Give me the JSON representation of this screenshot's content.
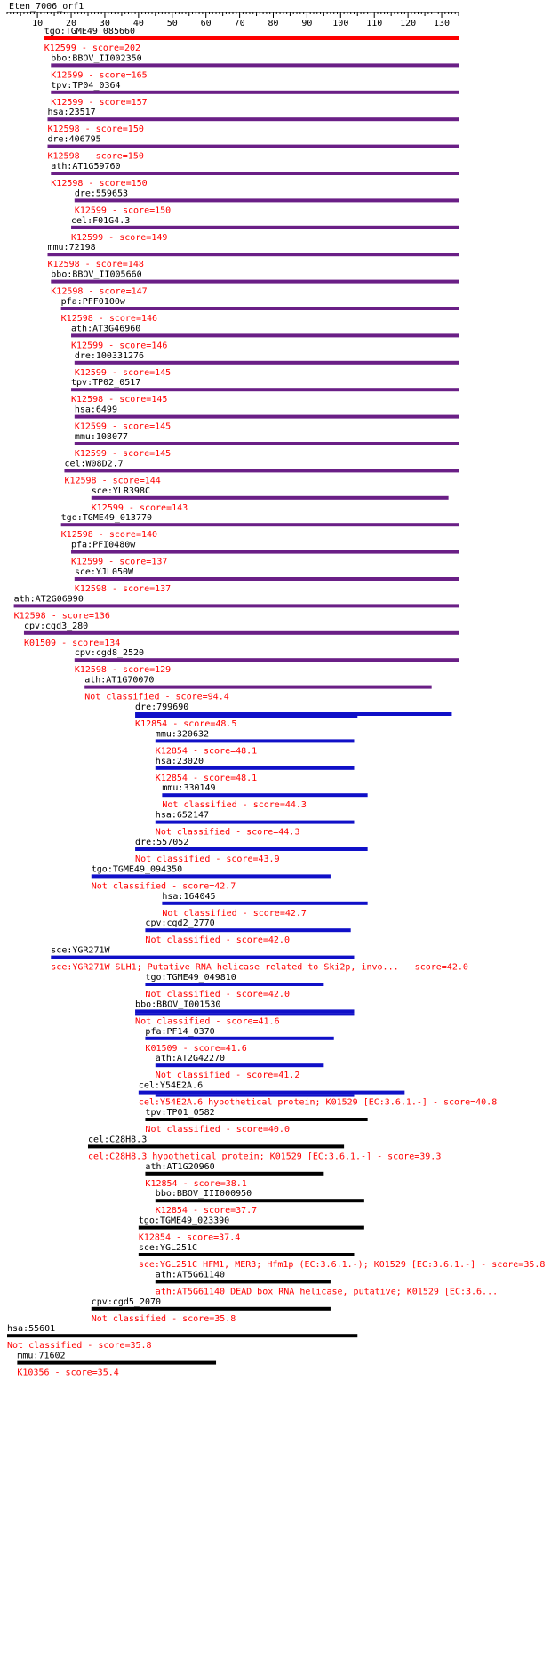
{
  "query": {
    "name": "Eten_7006_orf1",
    "axis_ticks": [
      10,
      20,
      30,
      40,
      50,
      60,
      70,
      80,
      90,
      100,
      110,
      120,
      130
    ]
  },
  "colors": {
    "red": "#ff0000",
    "purple": "#6a1f86",
    "blue": "#1010c8",
    "black": "#000000",
    "label": "#000000",
    "subtitle": "#ff0000"
  },
  "chart_data": {
    "type": "alignment",
    "x_unit": "query residue position",
    "xlim": [
      1,
      135
    ],
    "hits": [
      {
        "label": "tgo:TGME49_085660",
        "subtitle": "K12599 - score=202",
        "start": 12,
        "end": 135,
        "color": "red"
      },
      {
        "label": "bbo:BBOV_II002350",
        "subtitle": "K12599 - score=165",
        "start": 14,
        "end": 135,
        "color": "purple"
      },
      {
        "label": "tpv:TP04_0364",
        "subtitle": "K12599 - score=157",
        "start": 14,
        "end": 135,
        "color": "purple"
      },
      {
        "label": "hsa:23517",
        "subtitle": "K12598 - score=150",
        "start": 13,
        "end": 135,
        "color": "purple"
      },
      {
        "label": "dre:406795",
        "subtitle": "K12598 - score=150",
        "start": 13,
        "end": 135,
        "color": "purple"
      },
      {
        "label": "ath:AT1G59760",
        "subtitle": "K12598 - score=150",
        "start": 14,
        "end": 135,
        "color": "purple"
      },
      {
        "label": "dre:559653",
        "subtitle": "K12599 - score=150",
        "start": 21,
        "end": 135,
        "color": "purple"
      },
      {
        "label": "cel:F01G4.3",
        "subtitle": "K12599 - score=149",
        "start": 20,
        "end": 135,
        "color": "purple"
      },
      {
        "label": "mmu:72198",
        "subtitle": "K12598 - score=148",
        "start": 13,
        "end": 135,
        "color": "purple"
      },
      {
        "label": "bbo:BBOV_II005660",
        "subtitle": "K12598 - score=147",
        "start": 14,
        "end": 135,
        "color": "purple"
      },
      {
        "label": "pfa:PFF0100w",
        "subtitle": "K12598 - score=146",
        "start": 17,
        "end": 135,
        "color": "purple"
      },
      {
        "label": "ath:AT3G46960",
        "subtitle": "K12599 - score=146",
        "start": 20,
        "end": 135,
        "color": "purple"
      },
      {
        "label": "dre:100331276",
        "subtitle": "K12599 - score=145",
        "start": 21,
        "end": 135,
        "color": "purple"
      },
      {
        "label": "tpv:TP02_0517",
        "subtitle": "K12598 - score=145",
        "start": 20,
        "end": 135,
        "color": "purple"
      },
      {
        "label": "hsa:6499",
        "subtitle": "K12599 - score=145",
        "start": 21,
        "end": 135,
        "color": "purple"
      },
      {
        "label": "mmu:108077",
        "subtitle": "K12599 - score=145",
        "start": 21,
        "end": 135,
        "color": "purple"
      },
      {
        "label": "cel:W08D2.7",
        "subtitle": "K12598 - score=144",
        "start": 18,
        "end": 135,
        "color": "purple"
      },
      {
        "label": "sce:YLR398C",
        "subtitle": "K12599 - score=143",
        "start": 26,
        "end": 132,
        "color": "purple"
      },
      {
        "label": "tgo:TGME49_013770",
        "subtitle": "K12598 - score=140",
        "start": 17,
        "end": 135,
        "color": "purple"
      },
      {
        "label": "pfa:PFI0480w",
        "subtitle": "K12599 - score=137",
        "start": 20,
        "end": 135,
        "color": "purple"
      },
      {
        "label": "sce:YJL050W",
        "subtitle": "K12598 - score=137",
        "start": 21,
        "end": 135,
        "color": "purple"
      },
      {
        "label": "ath:AT2G06990",
        "subtitle": "K12598 - score=136",
        "start": 3,
        "end": 135,
        "color": "purple"
      },
      {
        "label": "cpv:cgd3_280",
        "subtitle": "K01509 - score=134",
        "start": 6,
        "end": 135,
        "color": "purple"
      },
      {
        "label": "cpv:cgd8_2520",
        "subtitle": "K12598 - score=129",
        "start": 21,
        "end": 135,
        "color": "purple"
      },
      {
        "label": "ath:AT1G70070",
        "subtitle": "Not classified - score=94.4",
        "start": 24,
        "end": 127,
        "color": "purple"
      },
      {
        "label": "dre:799690",
        "subtitle": "K12854 - score=48.5",
        "start": 39,
        "end": 133,
        "start2": 39,
        "end2": 105,
        "color": "blue"
      },
      {
        "label": "mmu:320632",
        "subtitle": "K12854 - score=48.1",
        "start": 45,
        "end": 104,
        "color": "blue"
      },
      {
        "label": "hsa:23020",
        "subtitle": "K12854 - score=48.1",
        "start": 45,
        "end": 104,
        "color": "blue"
      },
      {
        "label": "mmu:330149",
        "subtitle": "Not classified - score=44.3",
        "start": 47,
        "end": 108,
        "color": "blue"
      },
      {
        "label": "hsa:652147",
        "subtitle": "Not classified - score=44.3",
        "start": 45,
        "end": 104,
        "color": "blue"
      },
      {
        "label": "dre:557052",
        "subtitle": "Not classified - score=43.9",
        "start": 39,
        "end": 108,
        "color": "blue"
      },
      {
        "label": "tgo:TGME49_094350",
        "subtitle": "Not classified - score=42.7",
        "start": 26,
        "end": 97,
        "color": "blue"
      },
      {
        "label": "hsa:164045",
        "subtitle": "Not classified - score=42.7",
        "start": 47,
        "end": 108,
        "color": "blue"
      },
      {
        "label": "cpv:cgd2_2770",
        "subtitle": "Not classified - score=42.0",
        "start": 42,
        "end": 103,
        "color": "blue"
      },
      {
        "label": "sce:YGR271W",
        "subtitle": "sce:YGR271W  SLH1; Putative RNA helicase related to Ski2p, invo... - score=42.0",
        "start": 14,
        "end": 104,
        "color": "blue"
      },
      {
        "label": "tgo:TGME49_049810",
        "subtitle": "Not classified - score=42.0",
        "start": 42,
        "end": 95,
        "color": "blue"
      },
      {
        "label": "bbo:BBOV_I001530",
        "subtitle": "Not classified - score=41.6",
        "start": 39,
        "end": 104,
        "start2": 39,
        "end2": 104,
        "color": "blue"
      },
      {
        "label": "pfa:PF14_0370",
        "subtitle": "K01509 - score=41.6",
        "start": 42,
        "end": 98,
        "color": "blue"
      },
      {
        "label": "ath:AT2G42270",
        "subtitle": "Not classified - score=41.2",
        "start": 45,
        "end": 95,
        "color": "blue"
      },
      {
        "label": "cel:Y54E2A.6",
        "subtitle": "cel:Y54E2A.6  hypothetical protein; K01529  [EC:3.6.1.-] - score=40.8",
        "start": 40,
        "end": 119,
        "start2": 45,
        "end2": 104,
        "color": "blue"
      },
      {
        "label": "tpv:TP01_0582",
        "subtitle": "Not classified - score=40.0",
        "start": 42,
        "end": 108,
        "color": "black"
      },
      {
        "label": "cel:C28H8.3",
        "subtitle": "cel:C28H8.3  hypothetical protein; K01529  [EC:3.6.1.-] - score=39.3",
        "start": 25,
        "end": 101,
        "color": "black"
      },
      {
        "label": "ath:AT1G20960",
        "subtitle": "K12854 - score=38.1",
        "start": 42,
        "end": 95,
        "color": "black"
      },
      {
        "label": "bbo:BBOV_III000950",
        "subtitle": "K12854 - score=37.7",
        "start": 45,
        "end": 107,
        "color": "black"
      },
      {
        "label": "tgo:TGME49_023390",
        "subtitle": "K12854 - score=37.4",
        "start": 40,
        "end": 107,
        "color": "black"
      },
      {
        "label": "sce:YGL251C",
        "subtitle": "sce:YGL251C  HFM1, MER3; Hfm1p (EC:3.6.1.-); K01529  [EC:3.6.1.-] - score=35.8",
        "start": 40,
        "end": 104,
        "color": "black"
      },
      {
        "label": "ath:AT5G61140",
        "subtitle": "ath:AT5G61140  DEAD box RNA helicase, putative; K01529  [EC:3.6...",
        "start": 45,
        "end": 97,
        "color": "black"
      },
      {
        "label": "cpv:cgd5_2070",
        "subtitle": "Not classified - score=35.8",
        "start": 26,
        "end": 97,
        "color": "black"
      },
      {
        "label": "hsa:55601",
        "subtitle": "Not classified - score=35.8",
        "start": 1,
        "end": 105,
        "color": "black"
      },
      {
        "label": "mmu:71602",
        "subtitle": "K10356 - score=35.4",
        "start": 4,
        "end": 63,
        "color": "black"
      }
    ]
  }
}
